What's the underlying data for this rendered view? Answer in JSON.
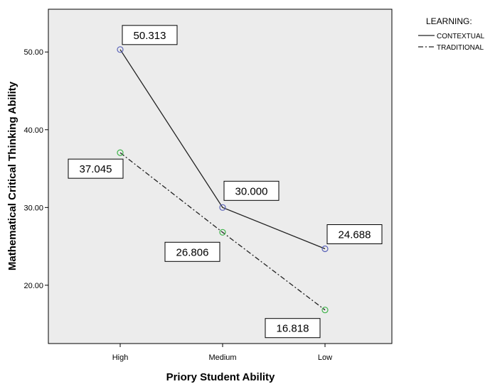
{
  "chart_data": {
    "type": "line",
    "xlabel": "Priory Student Ability",
    "ylabel": "Mathematical Critical Thinking Ability",
    "categories": [
      "High",
      "Medium",
      "Low"
    ],
    "y_ticks": [
      "20.00",
      "30.00",
      "40.00",
      "50.00"
    ],
    "ylim": [
      12.5,
      55.5
    ],
    "grid": false,
    "legend_title": "LEARNING:",
    "legend_position": "top-right",
    "series": [
      {
        "name": "CONTEXTUAL",
        "values": [
          50.313,
          30.0,
          24.688
        ],
        "labels": [
          "50.313",
          "30.000",
          "24.688"
        ],
        "line_style": "solid",
        "marker_color": "#5a63b8"
      },
      {
        "name": "TRADITIONAL",
        "values": [
          37.045,
          26.806,
          16.818
        ],
        "labels": [
          "37.045",
          "26.806",
          "16.818"
        ],
        "line_style": "dash-dot",
        "marker_color": "#3eb34a"
      }
    ],
    "colors": {
      "plot_background": "#ececec",
      "line": "#222222"
    }
  }
}
